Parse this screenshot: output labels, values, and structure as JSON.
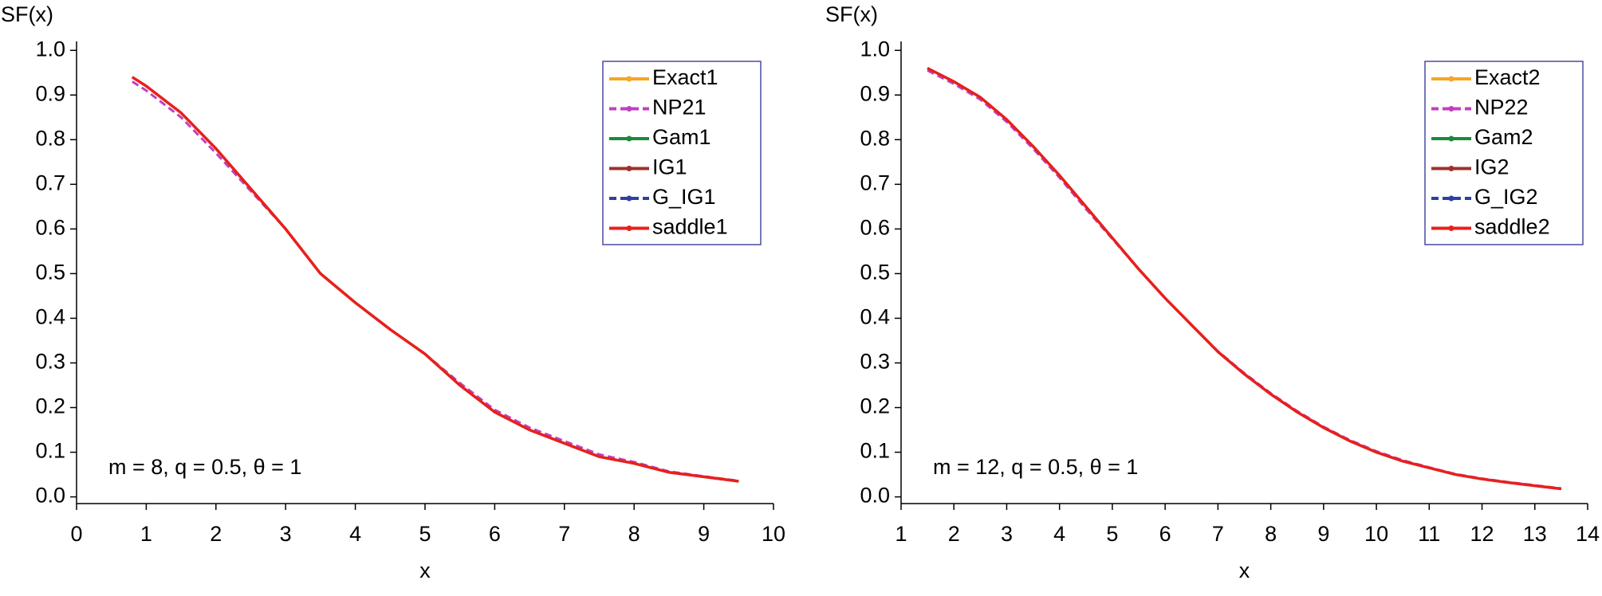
{
  "chart_data": [
    {
      "type": "line",
      "y_label": "SF(x)",
      "x_label": "x",
      "annotation": "m = 8, q = 0.5, θ = 1",
      "x": [
        0.8,
        1,
        1.5,
        2,
        2.5,
        3,
        3.5,
        4,
        4.5,
        5,
        5.5,
        6,
        6.5,
        7,
        7.5,
        8,
        8.5,
        9,
        9.5
      ],
      "series": [
        {
          "name": "Exact1",
          "color": "#f5a623",
          "dash": false,
          "values": [
            0.94,
            0.92,
            0.86,
            0.78,
            0.69,
            0.6,
            0.5,
            0.435,
            0.375,
            0.32,
            0.25,
            0.19,
            0.15,
            0.12,
            0.09,
            0.075,
            0.055,
            0.045,
            0.035
          ]
        },
        {
          "name": "NP21",
          "color": "#c040c0",
          "dash": true,
          "values": [
            0.93,
            0.91,
            0.85,
            0.77,
            0.685,
            0.6,
            0.5,
            0.435,
            0.375,
            0.32,
            0.255,
            0.195,
            0.155,
            0.125,
            0.095,
            0.078,
            0.057,
            0.046,
            0.036
          ]
        },
        {
          "name": "Gam1",
          "color": "#1a8a3a",
          "dash": false,
          "values": [
            0.94,
            0.92,
            0.86,
            0.78,
            0.69,
            0.6,
            0.5,
            0.435,
            0.375,
            0.32,
            0.25,
            0.19,
            0.15,
            0.12,
            0.09,
            0.075,
            0.055,
            0.045,
            0.035
          ]
        },
        {
          "name": "IG1",
          "color": "#a0302a",
          "dash": false,
          "values": [
            0.94,
            0.92,
            0.86,
            0.78,
            0.69,
            0.6,
            0.5,
            0.435,
            0.375,
            0.32,
            0.25,
            0.19,
            0.15,
            0.12,
            0.09,
            0.075,
            0.055,
            0.045,
            0.035
          ]
        },
        {
          "name": "G_IG1",
          "color": "#3040a0",
          "dash": true,
          "values": [
            0.94,
            0.92,
            0.86,
            0.78,
            0.69,
            0.6,
            0.5,
            0.435,
            0.375,
            0.32,
            0.25,
            0.19,
            0.15,
            0.12,
            0.09,
            0.075,
            0.055,
            0.045,
            0.035
          ]
        },
        {
          "name": "saddle1",
          "color": "#e8201c",
          "dash": false,
          "values": [
            0.94,
            0.92,
            0.86,
            0.78,
            0.69,
            0.6,
            0.5,
            0.435,
            0.375,
            0.32,
            0.25,
            0.19,
            0.15,
            0.12,
            0.09,
            0.075,
            0.055,
            0.045,
            0.035
          ]
        }
      ],
      "xlim": [
        0,
        10
      ],
      "xticks": [
        0,
        1,
        2,
        3,
        4,
        5,
        6,
        7,
        8,
        9,
        10
      ],
      "ylim": [
        -0.015,
        1.02
      ],
      "yticks": [
        {
          "value": 0,
          "label": "0.0"
        },
        0.1,
        0.2,
        0.3,
        0.4,
        0.5,
        0.6,
        0.7,
        0.8,
        0.9,
        {
          "value": 1,
          "label": "1.0"
        }
      ],
      "legend": "upper right"
    },
    {
      "type": "line",
      "y_label": "SF(x)",
      "x_label": "x",
      "annotation": "m = 12, q = 0.5, θ = 1",
      "x": [
        1.5,
        2,
        2.5,
        3,
        3.5,
        4,
        4.5,
        5,
        5.5,
        6,
        6.5,
        7,
        7.5,
        8,
        8.5,
        9,
        9.5,
        10,
        10.5,
        11,
        11.5,
        12,
        12.5,
        13,
        13.5
      ],
      "series": [
        {
          "name": "Exact2",
          "color": "#f5a623",
          "dash": false,
          "values": [
            0.96,
            0.93,
            0.895,
            0.845,
            0.785,
            0.72,
            0.65,
            0.58,
            0.51,
            0.445,
            0.385,
            0.325,
            0.275,
            0.23,
            0.19,
            0.155,
            0.125,
            0.1,
            0.08,
            0.065,
            0.05,
            0.04,
            0.032,
            0.025,
            0.018
          ]
        },
        {
          "name": "NP22",
          "color": "#c040c0",
          "dash": true,
          "values": [
            0.955,
            0.925,
            0.89,
            0.84,
            0.78,
            0.715,
            0.645,
            0.578,
            0.51,
            0.445,
            0.385,
            0.326,
            0.277,
            0.232,
            0.192,
            0.157,
            0.127,
            0.102,
            0.082,
            0.066,
            0.051,
            0.041,
            0.033,
            0.026,
            0.019
          ]
        },
        {
          "name": "Gam2",
          "color": "#1a8a3a",
          "dash": false,
          "values": [
            0.96,
            0.93,
            0.895,
            0.845,
            0.785,
            0.72,
            0.65,
            0.58,
            0.51,
            0.445,
            0.385,
            0.325,
            0.275,
            0.23,
            0.19,
            0.155,
            0.125,
            0.1,
            0.08,
            0.065,
            0.05,
            0.04,
            0.032,
            0.025,
            0.018
          ]
        },
        {
          "name": "IG2",
          "color": "#a0302a",
          "dash": false,
          "values": [
            0.96,
            0.93,
            0.895,
            0.845,
            0.785,
            0.72,
            0.65,
            0.58,
            0.51,
            0.445,
            0.385,
            0.325,
            0.275,
            0.23,
            0.19,
            0.155,
            0.125,
            0.1,
            0.08,
            0.065,
            0.05,
            0.04,
            0.032,
            0.025,
            0.018
          ]
        },
        {
          "name": "G_IG2",
          "color": "#3040a0",
          "dash": true,
          "values": [
            0.96,
            0.93,
            0.895,
            0.845,
            0.785,
            0.72,
            0.65,
            0.58,
            0.51,
            0.445,
            0.385,
            0.325,
            0.275,
            0.23,
            0.19,
            0.155,
            0.125,
            0.1,
            0.08,
            0.065,
            0.05,
            0.04,
            0.032,
            0.025,
            0.018
          ]
        },
        {
          "name": "saddle2",
          "color": "#e8201c",
          "dash": false,
          "values": [
            0.96,
            0.93,
            0.895,
            0.845,
            0.785,
            0.72,
            0.65,
            0.58,
            0.51,
            0.445,
            0.385,
            0.325,
            0.275,
            0.23,
            0.19,
            0.155,
            0.125,
            0.1,
            0.08,
            0.065,
            0.05,
            0.04,
            0.032,
            0.025,
            0.018
          ]
        }
      ],
      "xlim": [
        1,
        14
      ],
      "xticks": [
        1,
        2,
        3,
        4,
        5,
        6,
        7,
        8,
        9,
        10,
        11,
        12,
        13,
        14
      ],
      "ylim": [
        -0.015,
        1.02
      ],
      "yticks": [
        {
          "value": 0,
          "label": "0.0"
        },
        0.1,
        0.2,
        0.3,
        0.4,
        0.5,
        0.6,
        0.7,
        0.8,
        0.9,
        {
          "value": 1,
          "label": "1.0"
        }
      ],
      "legend": "upper right"
    }
  ]
}
